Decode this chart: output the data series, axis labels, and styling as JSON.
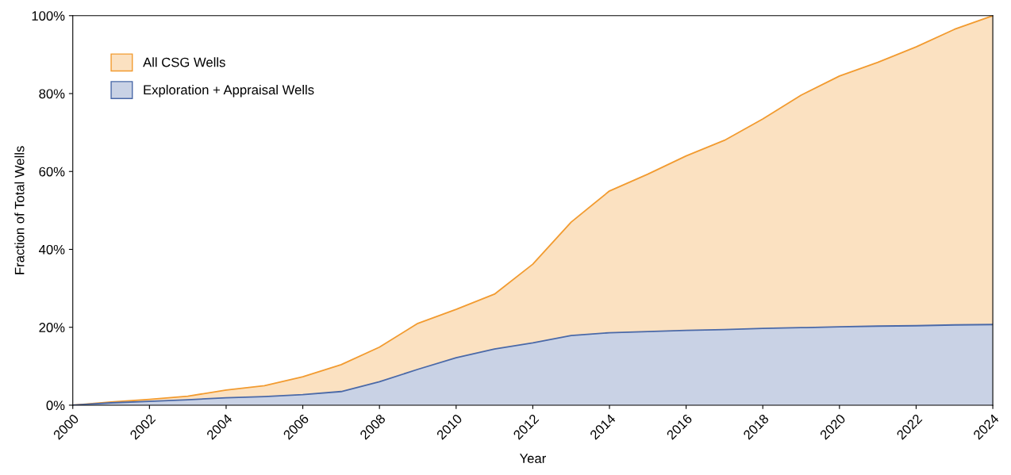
{
  "chart_data": {
    "type": "area",
    "xlabel": "Year",
    "ylabel": "Fraction of Total Wells",
    "x": [
      2000,
      2001,
      2002,
      2003,
      2004,
      2005,
      2006,
      2007,
      2008,
      2009,
      2010,
      2011,
      2012,
      2013,
      2014,
      2015,
      2016,
      2017,
      2018,
      2019,
      2020,
      2021,
      2022,
      2023,
      2024
    ],
    "series": [
      {
        "name": "All CSG Wells",
        "color": "#f29b30",
        "values": [
          0,
          0.8,
          1.5,
          2.3,
          3.9,
          5.0,
          7.3,
          10.4,
          14.9,
          21,
          24.6,
          28.5,
          36.2,
          47,
          55,
          59.3,
          64,
          68,
          73.5,
          79.6,
          84.5,
          88,
          92,
          96.5,
          100
        ]
      },
      {
        "name": "Exploration + Appraisal Wells",
        "color": "#4a69a8",
        "values": [
          0,
          0.6,
          1.0,
          1.4,
          1.9,
          2.2,
          2.7,
          3.5,
          6.0,
          9.2,
          12.2,
          14.4,
          16.0,
          17.9,
          18.6,
          18.9,
          19.2,
          19.4,
          19.7,
          19.9,
          20.1,
          20.3,
          20.4,
          20.6,
          20.7
        ]
      }
    ],
    "xlim": [
      2000,
      2024
    ],
    "xticks": [
      2000,
      2002,
      2004,
      2006,
      2008,
      2010,
      2012,
      2014,
      2016,
      2018,
      2020,
      2022,
      2024
    ],
    "ylim": [
      0,
      100
    ],
    "yticks": [
      {
        "value": 0,
        "label": "0%"
      },
      {
        "value": 20,
        "label": "20%"
      },
      {
        "value": 40,
        "label": "40%"
      },
      {
        "value": 60,
        "label": "60%"
      },
      {
        "value": 80,
        "label": "80%"
      },
      {
        "value": 100,
        "label": "100%"
      }
    ],
    "grid": false,
    "legend": "top left"
  }
}
